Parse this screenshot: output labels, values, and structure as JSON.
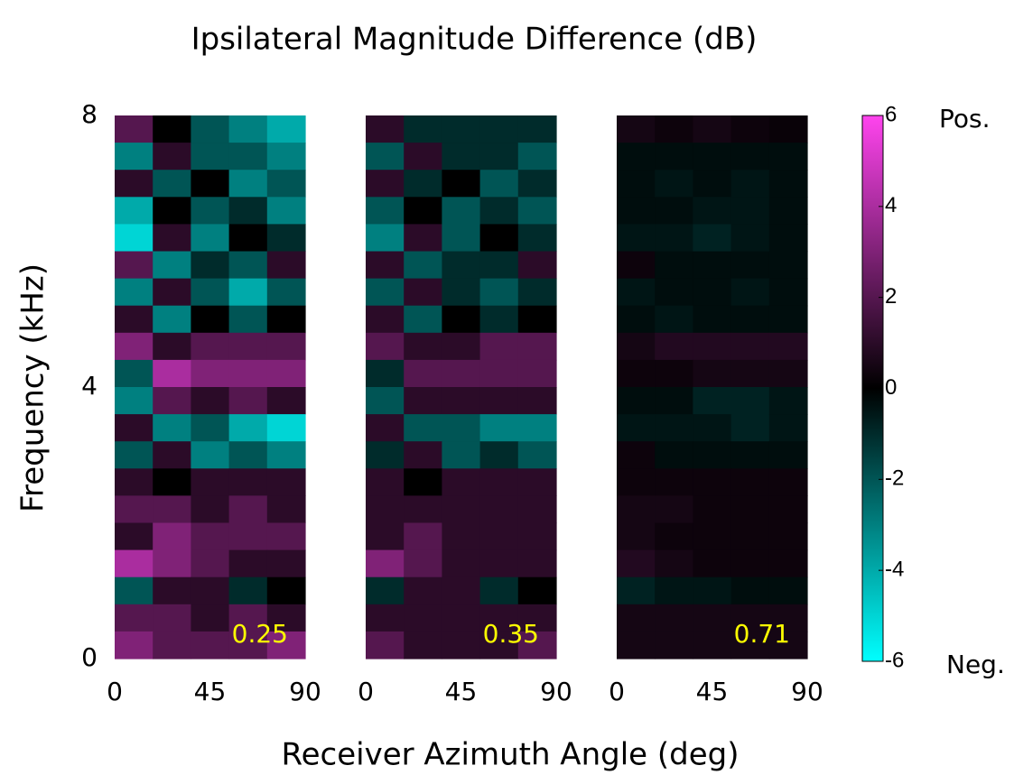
{
  "chart_data": {
    "type": "heatmap",
    "title": "Ipsilateral Magnitude Difference (dB)",
    "xlabel": "Receiver Azimuth Angle (deg)",
    "ylabel": "Frequency (kHz)",
    "xlim": [
      0,
      90
    ],
    "xticks": [
      0,
      45,
      90
    ],
    "ylim": [
      0,
      8
    ],
    "yticks": [
      0,
      4,
      8
    ],
    "colormap": [
      "#00ffff",
      "#000000",
      "#ff44ee"
    ],
    "colorbar": {
      "lim": [
        -6,
        6
      ],
      "ticks": [
        6,
        4,
        2,
        0,
        -2,
        -4,
        -6
      ],
      "top_label": "Pos.",
      "bottom_label": "Neg."
    },
    "panels": [
      {
        "annotation": "0.25",
        "values": [
          [
            2,
            0,
            -2,
            -3,
            -4
          ],
          [
            -3,
            1,
            -2,
            -2,
            -3
          ],
          [
            1,
            -2,
            0,
            -3,
            -2
          ],
          [
            -4,
            0,
            -2,
            -1,
            -3
          ],
          [
            -5,
            1,
            -3,
            0,
            -1
          ],
          [
            2,
            -3,
            -1,
            -2,
            1
          ],
          [
            -3,
            1,
            -2,
            -4,
            -2
          ],
          [
            1,
            -3,
            0,
            -2,
            0
          ],
          [
            3,
            1,
            2,
            2,
            2
          ],
          [
            -2,
            4,
            3,
            3,
            3
          ],
          [
            -3,
            2,
            1,
            2,
            1
          ],
          [
            1,
            -3,
            -2,
            -4,
            -5
          ],
          [
            -2,
            1,
            -3,
            -2,
            -3
          ],
          [
            1,
            0,
            1,
            1,
            1
          ],
          [
            2,
            2,
            1,
            2,
            1
          ],
          [
            1,
            3,
            2,
            2,
            2
          ],
          [
            4,
            3,
            2,
            1,
            1
          ],
          [
            -2,
            1,
            1,
            -1,
            0
          ],
          [
            2,
            2,
            1,
            2,
            1
          ],
          [
            3,
            2,
            2,
            2,
            3
          ]
        ]
      },
      {
        "annotation": "0.35",
        "values": [
          [
            1,
            -1,
            -1,
            -1,
            -1
          ],
          [
            -2,
            1,
            -1,
            -1,
            -2
          ],
          [
            1,
            -1,
            0,
            -2,
            -1
          ],
          [
            -2,
            0,
            -2,
            -1,
            -2
          ],
          [
            -3,
            1,
            -2,
            0,
            -1
          ],
          [
            1,
            -2,
            -1,
            -1,
            1
          ],
          [
            -2,
            1,
            -1,
            -2,
            -1
          ],
          [
            1,
            -2,
            0,
            -1,
            0
          ],
          [
            2,
            1,
            1,
            2,
            2
          ],
          [
            -1,
            2,
            2,
            2,
            2
          ],
          [
            -2,
            1,
            1,
            1,
            1
          ],
          [
            1,
            -2,
            -2,
            -3,
            -3
          ],
          [
            -1,
            1,
            -2,
            -1,
            -2
          ],
          [
            1,
            0,
            1,
            1,
            1
          ],
          [
            1,
            1,
            1,
            1,
            1
          ],
          [
            1,
            2,
            1,
            1,
            1
          ],
          [
            3,
            2,
            1,
            1,
            1
          ],
          [
            -1,
            1,
            1,
            -1,
            0
          ],
          [
            1,
            1,
            1,
            1,
            1
          ],
          [
            2,
            1,
            1,
            1,
            2
          ]
        ]
      },
      {
        "annotation": "0.71",
        "values": [
          [
            0.5,
            0.3,
            0.5,
            0.3,
            0.2
          ],
          [
            -0.3,
            -0.3,
            -0.3,
            -0.3,
            -0.3
          ],
          [
            -0.3,
            -0.5,
            -0.3,
            -0.5,
            -0.3
          ],
          [
            -0.3,
            -0.3,
            -0.5,
            -0.5,
            -0.3
          ],
          [
            -0.5,
            -0.5,
            -0.8,
            -0.5,
            -0.3
          ],
          [
            0.3,
            -0.3,
            -0.3,
            -0.3,
            -0.3
          ],
          [
            -0.5,
            -0.3,
            -0.3,
            -0.5,
            -0.3
          ],
          [
            -0.3,
            -0.5,
            -0.3,
            -0.3,
            -0.3
          ],
          [
            0.5,
            0.8,
            0.8,
            0.8,
            0.8
          ],
          [
            0.3,
            0.3,
            0.5,
            0.5,
            0.5
          ],
          [
            -0.3,
            -0.3,
            -0.8,
            -0.8,
            -0.5
          ],
          [
            -0.5,
            -0.5,
            -0.5,
            -0.8,
            -0.5
          ],
          [
            0.3,
            -0.3,
            -0.3,
            -0.3,
            -0.3
          ],
          [
            0.3,
            0.3,
            0.3,
            0.3,
            0.3
          ],
          [
            0.5,
            0.5,
            0.3,
            0.3,
            0.3
          ],
          [
            0.5,
            0.3,
            0.3,
            0.3,
            0.3
          ],
          [
            0.8,
            0.5,
            0.3,
            0.3,
            0.3
          ],
          [
            -0.8,
            -0.5,
            -0.5,
            -0.3,
            -0.3
          ],
          [
            0.5,
            0.5,
            0.5,
            0.5,
            0.5
          ],
          [
            0.5,
            0.5,
            0.5,
            0.5,
            0.5
          ]
        ]
      }
    ]
  }
}
